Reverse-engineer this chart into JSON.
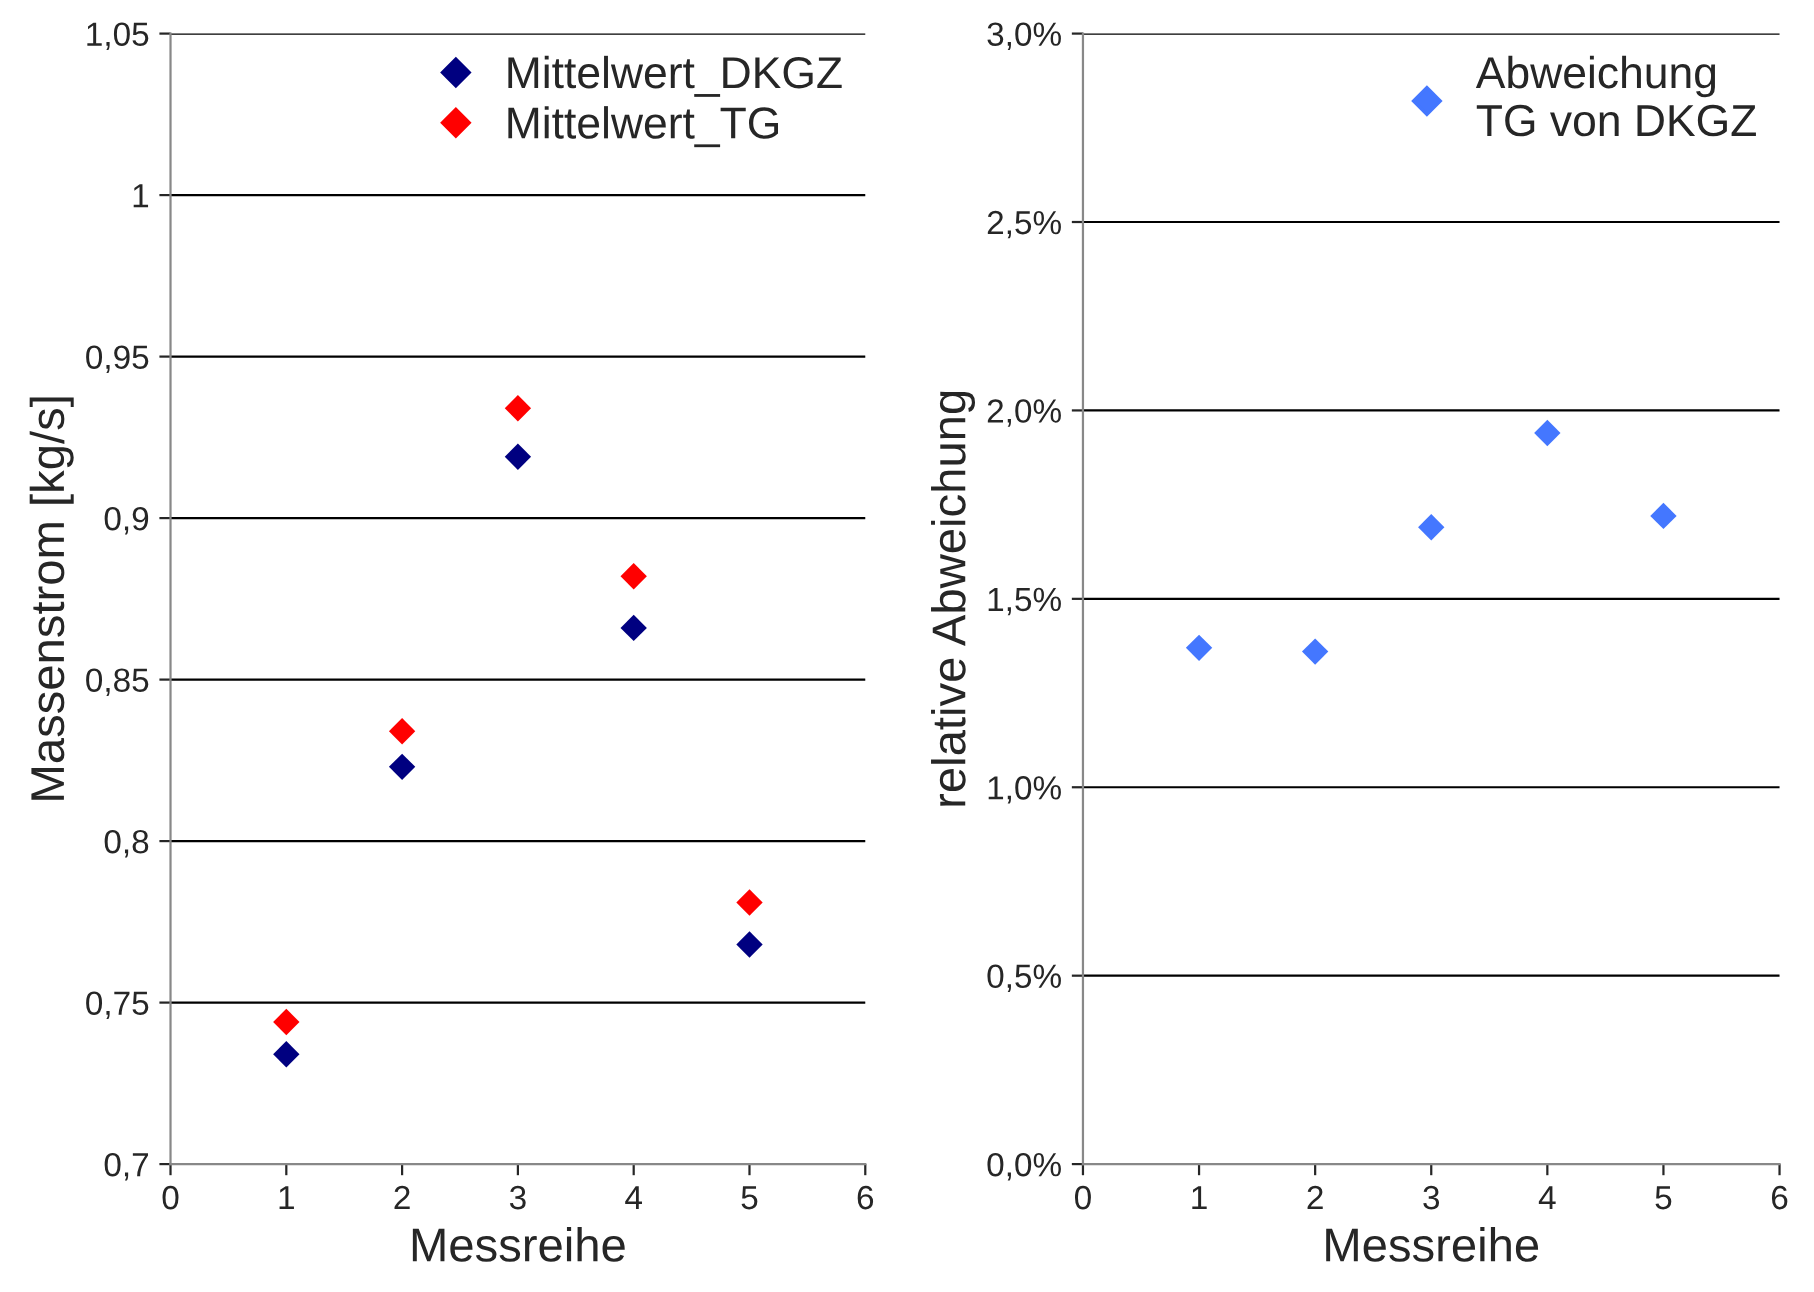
{
  "chart_data": [
    {
      "type": "scatter",
      "xlabel": "Messreihe",
      "ylabel": "Massenstrom [kg/s]",
      "x": [
        1,
        2,
        3,
        4,
        5
      ],
      "series": [
        {
          "name": "Mittelwert_DKGZ",
          "color": "#000080",
          "values": [
            0.734,
            0.823,
            0.919,
            0.866,
            0.768
          ]
        },
        {
          "name": "Mittelwert_TG",
          "color": "#ff0000",
          "values": [
            0.744,
            0.834,
            0.934,
            0.882,
            0.781
          ]
        }
      ],
      "xlim": [
        0,
        6
      ],
      "xticks": [
        0,
        1,
        2,
        3,
        4,
        5,
        6
      ],
      "ylim": [
        0.7,
        1.05
      ],
      "yticks": [
        {
          "value": 0.7,
          "label": "0,7"
        },
        {
          "value": 0.75,
          "label": "0,75"
        },
        {
          "value": 0.8,
          "label": "0,8"
        },
        {
          "value": 0.85,
          "label": "0,85"
        },
        {
          "value": 0.9,
          "label": "0,9"
        },
        {
          "value": 0.95,
          "label": "0,95"
        },
        {
          "value": 1.0,
          "label": "1"
        },
        {
          "value": 1.05,
          "label": "1,05"
        }
      ],
      "grid": "y",
      "legend": "top right",
      "marker": "diamond"
    },
    {
      "type": "scatter",
      "xlabel": "Messreihe",
      "ylabel": "relative Abweichung",
      "x": [
        1,
        2,
        3,
        4,
        5
      ],
      "series": [
        {
          "name": "Abweichung\nTG von DKGZ",
          "color": "#4477ff",
          "values": [
            1.37,
            1.36,
            1.69,
            1.94,
            1.72
          ]
        }
      ],
      "xlim": [
        0,
        6
      ],
      "xticks": [
        0,
        1,
        2,
        3,
        4,
        5,
        6
      ],
      "ylim": [
        0,
        3.0
      ],
      "yticks": [
        {
          "value": 0.0,
          "label": "0,0%"
        },
        {
          "value": 0.5,
          "label": "0,5%"
        },
        {
          "value": 1.0,
          "label": "1,0%"
        },
        {
          "value": 1.5,
          "label": "1,5%"
        },
        {
          "value": 2.0,
          "label": "2,0%"
        },
        {
          "value": 2.5,
          "label": "2,5%"
        },
        {
          "value": 3.0,
          "label": "3,0%"
        }
      ],
      "grid": "y",
      "legend": "top right",
      "marker": "diamond"
    }
  ]
}
